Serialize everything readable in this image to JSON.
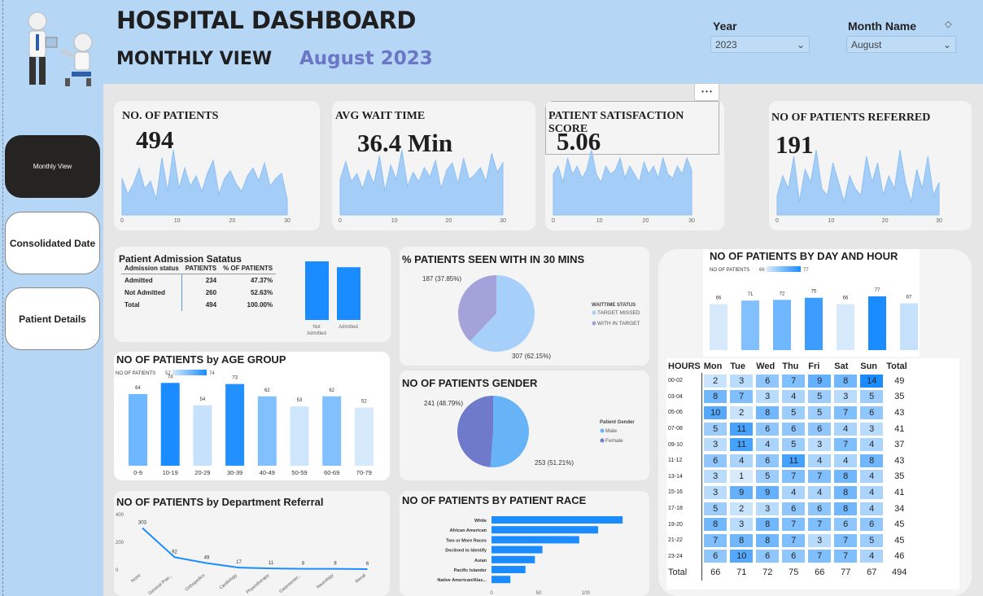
{
  "header": {
    "title": "HOSPITAL DASHBOARD",
    "subtitle": "MONTHLY VIEW",
    "month_display": "August 2023"
  },
  "filters": {
    "year_label": "Year",
    "year_value": "2023",
    "month_label": "Month Name",
    "month_value": "August"
  },
  "nav": {
    "monthly": "Monthly View",
    "consolidated": "Consolidated Date",
    "patient_details": "Patient Details"
  },
  "more_label": "• • •",
  "kpis": {
    "patients": {
      "title": "NO. OF PATIENTS",
      "value": "494",
      "spark": [
        14,
        8,
        12,
        18,
        10,
        13,
        6,
        22,
        9,
        25,
        10,
        18,
        11,
        15,
        9,
        16,
        21,
        8,
        14,
        17,
        12,
        9,
        15,
        18,
        13,
        20,
        11,
        14,
        16,
        6
      ],
      "axis": [
        "0",
        "10",
        "20",
        "30"
      ]
    },
    "wait": {
      "title": "AVG WAIT TIME",
      "value": "36.4 Min",
      "spark": [
        30,
        45,
        28,
        35,
        22,
        38,
        26,
        50,
        20,
        42,
        30,
        55,
        24,
        36,
        28,
        40,
        32,
        46,
        22,
        38,
        44,
        26,
        48,
        30,
        34,
        40,
        28,
        52,
        36,
        44
      ],
      "axis": [
        "0",
        "10",
        "20",
        "30"
      ]
    },
    "satisfaction": {
      "title": "PATIENT SATISFACTION SCORE",
      "value": "5.06",
      "spark": [
        5,
        6,
        4,
        7,
        5,
        6,
        4.5,
        5.5,
        8,
        5,
        4,
        6,
        5,
        5.5,
        7,
        4.5,
        6,
        5,
        4,
        6.5,
        5,
        6,
        4.5,
        7,
        5,
        4.5,
        6,
        5,
        7,
        5.5
      ],
      "axis": [
        "0",
        "10",
        "20",
        "30"
      ]
    },
    "referred": {
      "title": "NO OF PATIENTS REFERRED",
      "value": "191",
      "spark": [
        3,
        6,
        4,
        9,
        2,
        7,
        5,
        10,
        4,
        3,
        8,
        5,
        2,
        6,
        4,
        3,
        9,
        5,
        8,
        3,
        6,
        4,
        10,
        5,
        2,
        7,
        4,
        9,
        3,
        5
      ],
      "axis": [
        "0",
        "10",
        "20",
        "30"
      ]
    }
  },
  "admission": {
    "title": "Patient Admission Satatus",
    "headers": [
      "Admission status",
      "PATIENTS",
      "% OF PATIENTS"
    ],
    "rows": [
      [
        "Admitted",
        "234",
        "47.37%"
      ],
      [
        "Not Admitted",
        "260",
        "52.63%"
      ],
      [
        "Total",
        "494",
        "100.00%"
      ]
    ],
    "bar_labels": [
      "Not Admitted",
      "Admitted"
    ],
    "bar_values": [
      260,
      234
    ],
    "bar_color": "#1a8cff"
  },
  "seen30": {
    "title": "% PATIENTS SEEN WITH IN 30 MINS",
    "legend_title": "WAITTIME STATUS",
    "legend": [
      "TARGET MISSED",
      "WITH IN TARGET"
    ],
    "values": [
      307,
      187
    ],
    "labels": [
      "307 (62.15%)",
      "187 (37.85%)"
    ],
    "colors": [
      "#a6cffa",
      "#a3a3da"
    ]
  },
  "gender": {
    "title": "NO OF PATIENTS GENDER",
    "legend_title": "Patient Gender",
    "legend": [
      "Male",
      "Female"
    ],
    "values": [
      253,
      241
    ],
    "labels": [
      "253 (51.21%)",
      "241 (48.79%)"
    ],
    "colors": [
      "#66b3f7",
      "#6f7bca"
    ]
  },
  "age": {
    "title": "NO OF PATIENTS by AGE GROUP",
    "legend_label": "NO OF PATIENTS",
    "legend_min": "52",
    "legend_max": "74",
    "categories": [
      "0-9",
      "10-19",
      "20-29",
      "30-39",
      "40-49",
      "50-59",
      "60-69",
      "70-79"
    ],
    "values": [
      64,
      74,
      54,
      73,
      62,
      53,
      62,
      52
    ]
  },
  "dept": {
    "title": "NO OF PATIENTS by Department Referral",
    "categories": [
      "None",
      "General Prac...",
      "Orthopedics",
      "Cardiology",
      "Physiotherapy",
      "Gastroenter...",
      "Neurology",
      "Renal"
    ],
    "values": [
      303,
      92,
      49,
      17,
      11,
      8,
      8,
      6
    ],
    "yticks": [
      "0",
      "200",
      "400"
    ],
    "ymax": 400
  },
  "race": {
    "title": "NO OF PATIENTS BY PATIENT RACE",
    "categories": [
      "White",
      "African American",
      "Two or More Races",
      "Declined to Identify",
      "Asian",
      "Pacific Islander",
      "Native American/Alas..."
    ],
    "values": [
      139,
      113,
      93,
      54,
      46,
      36,
      20
    ],
    "xticks": [
      "0",
      "50",
      "100"
    ],
    "xmax": 150
  },
  "dayhour": {
    "title": "NO OF PATIENTS BY DAY AND HOUR",
    "legend_label": "NO OF PATIENTS",
    "legend_min": "66",
    "legend_max": "77",
    "days": [
      "Mon",
      "Tue",
      "Wed",
      "Thu",
      "Fri",
      "Sat",
      "Sun"
    ],
    "day_totals": [
      66,
      71,
      72,
      75,
      66,
      77,
      67
    ],
    "hours_header": "HOURS",
    "total_header": "Total",
    "total_label": "Total",
    "grand_total": "494",
    "hours": [
      "00-02",
      "03-04",
      "05-06",
      "07-08",
      "09-10",
      "11-12",
      "13-14",
      "15-16",
      "17-18",
      "19-20",
      "21-22",
      "23-24"
    ],
    "matrix": [
      [
        2,
        3,
        6,
        7,
        9,
        8,
        14
      ],
      [
        8,
        7,
        3,
        4,
        5,
        3,
        5
      ],
      [
        10,
        2,
        8,
        5,
        5,
        7,
        6
      ],
      [
        5,
        11,
        6,
        6,
        6,
        4,
        3
      ],
      [
        3,
        11,
        4,
        5,
        3,
        7,
        4
      ],
      [
        6,
        4,
        6,
        11,
        4,
        4,
        8
      ],
      [
        3,
        1,
        5,
        7,
        7,
        8,
        4
      ],
      [
        3,
        9,
        9,
        4,
        4,
        8,
        4
      ],
      [
        5,
        2,
        3,
        6,
        6,
        8,
        4
      ],
      [
        8,
        3,
        8,
        7,
        7,
        6,
        6
      ],
      [
        7,
        8,
        8,
        7,
        3,
        7,
        5
      ],
      [
        6,
        10,
        6,
        6,
        7,
        7,
        4
      ]
    ],
    "row_totals": [
      49,
      35,
      43,
      41,
      37,
      43,
      35,
      41,
      34,
      45,
      45,
      46
    ]
  }
}
